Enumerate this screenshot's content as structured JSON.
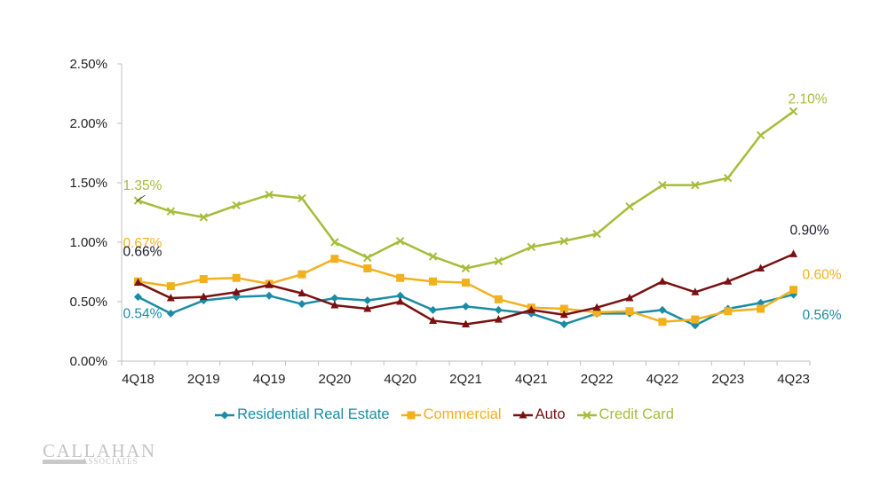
{
  "chart_data": {
    "type": "line",
    "title": "",
    "xlabel": "",
    "ylabel": "",
    "ylim": [
      0,
      2.5
    ],
    "y_ticks": [
      0,
      0.5,
      1.0,
      1.5,
      2.0,
      2.5
    ],
    "y_tick_labels": [
      "0.00%",
      "0.50%",
      "1.00%",
      "1.50%",
      "2.00%",
      "2.50%"
    ],
    "x": [
      "4Q18",
      "1Q19",
      "2Q19",
      "3Q19",
      "4Q19",
      "1Q20",
      "2Q20",
      "3Q20",
      "4Q20",
      "1Q21",
      "2Q21",
      "3Q21",
      "4Q21",
      "1Q22",
      "2Q22",
      "3Q22",
      "4Q22",
      "1Q23",
      "2Q23",
      "3Q23",
      "4Q23"
    ],
    "x_tick_labels": [
      "4Q18",
      "2Q19",
      "4Q19",
      "2Q20",
      "4Q20",
      "2Q21",
      "4Q21",
      "2Q22",
      "4Q22",
      "2Q23",
      "4Q23"
    ],
    "grid": false,
    "legend_position": "bottom",
    "series": [
      {
        "name": "Residential Real Estate",
        "color": "#1a8ca6",
        "marker": "diamond",
        "values": [
          0.54,
          0.4,
          0.51,
          0.54,
          0.55,
          0.48,
          0.53,
          0.51,
          0.55,
          0.43,
          0.46,
          0.43,
          0.4,
          0.31,
          0.4,
          0.4,
          0.43,
          0.3,
          0.44,
          0.49,
          0.56
        ],
        "start_label": "0.54%",
        "end_label": "0.56%"
      },
      {
        "name": "Commercial",
        "color": "#f2b01e",
        "marker": "square",
        "values": [
          0.67,
          0.63,
          0.69,
          0.7,
          0.65,
          0.73,
          0.86,
          0.78,
          0.7,
          0.67,
          0.66,
          0.52,
          0.45,
          0.44,
          0.41,
          0.42,
          0.33,
          0.35,
          0.42,
          0.44,
          0.6
        ],
        "start_label": "0.67%",
        "end_label": "0.60%"
      },
      {
        "name": "Auto",
        "color": "#7a1010",
        "label_color": "#1c1c2e",
        "marker": "triangle",
        "values": [
          0.66,
          0.53,
          0.54,
          0.58,
          0.64,
          0.57,
          0.47,
          0.44,
          0.5,
          0.34,
          0.31,
          0.35,
          0.43,
          0.39,
          0.45,
          0.53,
          0.67,
          0.58,
          0.67,
          0.78,
          0.9
        ],
        "start_label": "0.66%",
        "end_label": "0.90%"
      },
      {
        "name": "Credit Card",
        "color": "#a5bd3a",
        "marker": "x",
        "values": [
          1.35,
          1.26,
          1.21,
          1.31,
          1.4,
          1.37,
          1.0,
          0.87,
          1.01,
          0.88,
          0.78,
          0.84,
          0.96,
          1.01,
          1.07,
          1.3,
          1.48,
          1.48,
          1.54,
          1.9,
          2.1
        ],
        "start_label": "1.35%",
        "end_label": "2.10%"
      }
    ]
  },
  "logo": {
    "main": "CALLAHAN",
    "sub": "ASSOCIATES"
  }
}
